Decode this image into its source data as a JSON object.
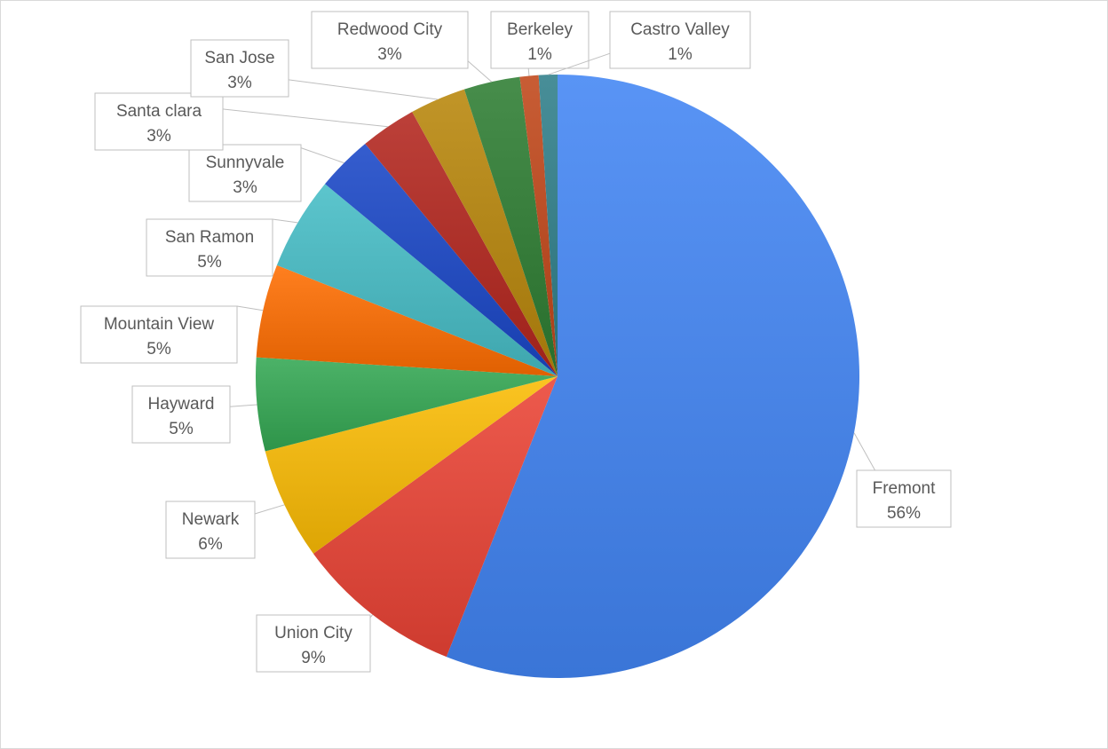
{
  "chart_data": {
    "type": "pie",
    "title": "",
    "categories": [
      "Fremont",
      "Union City",
      "Newark",
      "Hayward",
      "Mountain View",
      "San Ramon",
      "Sunnyvale",
      "Santa clara",
      "San Jose",
      "Redwood City",
      "Berkeley",
      "Castro Valley"
    ],
    "values": [
      56,
      9,
      6,
      5,
      5,
      5,
      3,
      3,
      3,
      3,
      1,
      1
    ],
    "labels": [
      "56%",
      "9%",
      "6%",
      "5%",
      "5%",
      "5%",
      "3%",
      "3%",
      "3%",
      "3%",
      "1%",
      "1%"
    ],
    "colors": [
      "#4285f4",
      "#ea4335",
      "#fbbc04",
      "#34a853",
      "#ff6d01",
      "#46bdc6",
      "#1a47c7",
      "#b3261e",
      "#b8860b",
      "#2e7d32",
      "#c0471a",
      "#2f7f8a"
    ],
    "start_angle": "12 o'clock",
    "direction": "clockwise",
    "legend": "none",
    "data_label_style": "callout: category name and percent"
  }
}
